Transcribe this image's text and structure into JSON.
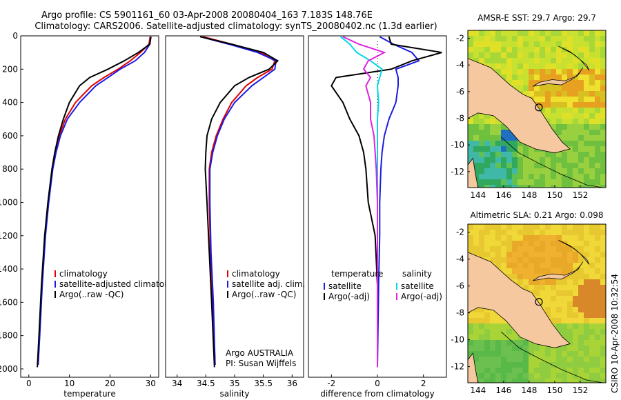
{
  "header": {
    "title_line1": "Argo profile: CS 5901161_60 03-Apr-2008 20080404_163 7.183S 148.76E",
    "title_line2": "Climatology: CARS2006. Satellite-adjusted climatology: synTS_20080402.nc (1.3d earlier)"
  },
  "footer": {
    "credit": "CSIRO 10-Apr-2008 10:32:54"
  },
  "chart_data": [
    {
      "type": "line",
      "xlabel": "temperature",
      "ylabel": "",
      "xlim": [
        -2,
        32
      ],
      "ylim": [
        2050,
        0
      ],
      "x_ticks": [
        "0",
        "10",
        "20",
        "30"
      ],
      "y_ticks": [
        "0",
        "200",
        "400",
        "600",
        "800",
        "1000",
        "1200",
        "1400",
        "1600",
        "1800",
        "2000"
      ],
      "legend_position": "bottom-right",
      "legend": [
        "climatology",
        "satellite-adjusted climatology",
        "Argo(..raw -QC)"
      ],
      "colors": {
        "climatology": "#e00000",
        "satellite-adjusted climatology": "#1a1ae6",
        "Argo(..raw -QC)": "#000000"
      },
      "series": [
        {
          "name": "climatology",
          "depth": [
            5,
            50,
            100,
            150,
            200,
            250,
            300,
            400,
            500,
            600,
            700,
            800,
            1000,
            1200,
            1500,
            1800,
            1975
          ],
          "values": [
            29.9,
            29.6,
            27.5,
            25.0,
            22.0,
            18.5,
            15.5,
            11.5,
            9.0,
            7.5,
            6.5,
            5.8,
            4.8,
            4.0,
            3.2,
            2.6,
            2.3
          ]
        },
        {
          "name": "satellite-adjusted climatology",
          "depth": [
            5,
            50,
            100,
            150,
            200,
            250,
            300,
            400,
            500,
            600,
            700,
            800,
            1000,
            1200,
            1500,
            1800,
            1975
          ],
          "values": [
            30.0,
            29.8,
            28.5,
            26.2,
            22.5,
            19.5,
            16.5,
            12.5,
            9.5,
            7.8,
            6.7,
            5.9,
            4.9,
            4.1,
            3.3,
            2.7,
            2.3
          ]
        },
        {
          "name": "Argo(..raw -QC)",
          "depth": [
            5,
            50,
            100,
            150,
            200,
            250,
            300,
            400,
            500,
            600,
            700,
            800,
            1000,
            1200,
            1500,
            1800,
            1990
          ],
          "values": [
            30.1,
            29.8,
            27.0,
            23.5,
            19.5,
            15.0,
            12.5,
            10.0,
            8.5,
            7.3,
            6.4,
            5.7,
            4.7,
            3.9,
            3.1,
            2.5,
            2.1
          ]
        }
      ]
    },
    {
      "type": "line",
      "xlabel": "salinity",
      "ylabel": "",
      "xlim": [
        33.8,
        36.2
      ],
      "ylim": [
        2050,
        0
      ],
      "x_ticks": [
        "34",
        "34.5",
        "35",
        "35.5",
        "36"
      ],
      "legend_position": "bottom-right",
      "legend": [
        "climatology",
        "satellite adj. clim.",
        "Argo(..raw -QC)"
      ],
      "annotations": [
        "Argo AUSTRALIA",
        "PI: Susan Wijffels"
      ],
      "series": [
        {
          "name": "climatology",
          "depth": [
            5,
            50,
            100,
            150,
            200,
            250,
            300,
            400,
            500,
            600,
            700,
            800,
            1000,
            1300,
            1600,
            1975
          ],
          "values": [
            34.45,
            34.95,
            35.45,
            35.7,
            35.65,
            35.4,
            35.2,
            34.95,
            34.8,
            34.68,
            34.6,
            34.56,
            34.56,
            34.58,
            34.62,
            34.66
          ]
        },
        {
          "name": "satellite adj. clim.",
          "depth": [
            5,
            50,
            100,
            150,
            200,
            250,
            300,
            400,
            500,
            600,
            700,
            800,
            1000,
            1300,
            1600,
            1975
          ],
          "values": [
            34.4,
            34.9,
            35.4,
            35.72,
            35.7,
            35.5,
            35.3,
            35.0,
            34.82,
            34.7,
            34.62,
            34.57,
            34.57,
            34.59,
            34.63,
            34.66
          ]
        },
        {
          "name": "Argo(..raw -QC)",
          "depth": [
            5,
            50,
            100,
            150,
            200,
            250,
            300,
            400,
            500,
            600,
            700,
            800,
            1000,
            1300,
            1600,
            1990
          ],
          "values": [
            34.4,
            34.95,
            35.5,
            35.75,
            35.6,
            35.25,
            35.0,
            34.75,
            34.6,
            34.52,
            34.5,
            34.49,
            34.52,
            34.56,
            34.6,
            34.65
          ]
        }
      ]
    },
    {
      "type": "line",
      "xlabel": "difference from climatology",
      "ylabel": "",
      "xlim": [
        -3,
        3
      ],
      "ylim": [
        2050,
        0
      ],
      "x_ticks": [
        "-2",
        "0",
        "2"
      ],
      "legend_position": "bottom-center",
      "legend_groups": [
        {
          "title": "temperature",
          "items": [
            "satellite",
            "Argo(-adj)"
          ]
        },
        {
          "title": "salinity",
          "items": [
            "satellite",
            "Argo(-adj)"
          ]
        }
      ],
      "series": [
        {
          "name": "temperature satellite",
          "color": "#1a1ae6",
          "depth": [
            5,
            50,
            100,
            150,
            200,
            250,
            300,
            400,
            500,
            600,
            700,
            800,
            1000,
            1200,
            1500,
            1990
          ],
          "values": [
            0.1,
            0.7,
            1.5,
            1.8,
            0.8,
            0.9,
            0.9,
            0.8,
            0.5,
            0.3,
            0.2,
            0.15,
            0.1,
            0.1,
            0.05,
            0.0
          ]
        },
        {
          "name": "temperature Argo(-adj)",
          "color": "#000000",
          "depth": [
            5,
            50,
            100,
            150,
            200,
            250,
            300,
            400,
            500,
            600,
            700,
            800,
            1000,
            1200,
            1500,
            1990
          ],
          "values": [
            0.5,
            0.6,
            2.8,
            1.5,
            0.6,
            -1.8,
            -2.0,
            -1.5,
            -1.2,
            -0.8,
            -0.6,
            -0.5,
            -0.4,
            -0.1,
            0.0,
            0.0
          ]
        },
        {
          "name": "salinity satellite",
          "color": "#00d8e8",
          "depth": [
            5,
            50,
            100,
            150,
            200,
            250,
            300,
            400,
            500,
            600,
            700,
            800,
            1000,
            1200,
            1500,
            1990
          ],
          "values": [
            -1.6,
            -1.2,
            -0.9,
            -0.3,
            0.2,
            0.1,
            0.0,
            0.05,
            0.0,
            0.0,
            0.0,
            0.0,
            0.0,
            0.0,
            0.0,
            0.0
          ]
        },
        {
          "name": "salinity Argo(-adj)",
          "color": "#e020e0",
          "depth": [
            5,
            50,
            100,
            150,
            200,
            250,
            300,
            400,
            500,
            600,
            700,
            800,
            1000,
            1200,
            1500,
            1990
          ],
          "values": [
            -1.5,
            -0.8,
            0.3,
            -0.4,
            -0.6,
            -0.3,
            -0.5,
            -0.3,
            -0.3,
            -0.15,
            -0.1,
            -0.05,
            0.0,
            0.0,
            0.0,
            0.0
          ]
        }
      ]
    },
    {
      "type": "heatmap",
      "title": "AMSR-E SST: 29.7 Argo: 29.7",
      "x_ticks": [
        "144",
        "146",
        "148",
        "150",
        "152"
      ],
      "y_ticks": [
        "-2",
        "-4",
        "-6",
        "-8",
        "-10",
        "-12"
      ],
      "xlim": [
        143.2,
        154.0
      ],
      "ylim": [
        -13.2,
        -1.4
      ],
      "marker": {
        "lon": 148.76,
        "lat": -7.183
      }
    },
    {
      "type": "heatmap",
      "title": "Altimetric SLA: 0.21 Argo: 0.098",
      "x_ticks": [
        "144",
        "146",
        "148",
        "150",
        "152"
      ],
      "y_ticks": [
        "-2",
        "-4",
        "-6",
        "-8",
        "-10",
        "-12"
      ],
      "xlim": [
        143.2,
        154.0
      ],
      "ylim": [
        -13.2,
        -1.4
      ],
      "marker": {
        "lon": 148.76,
        "lat": -7.183
      }
    }
  ]
}
